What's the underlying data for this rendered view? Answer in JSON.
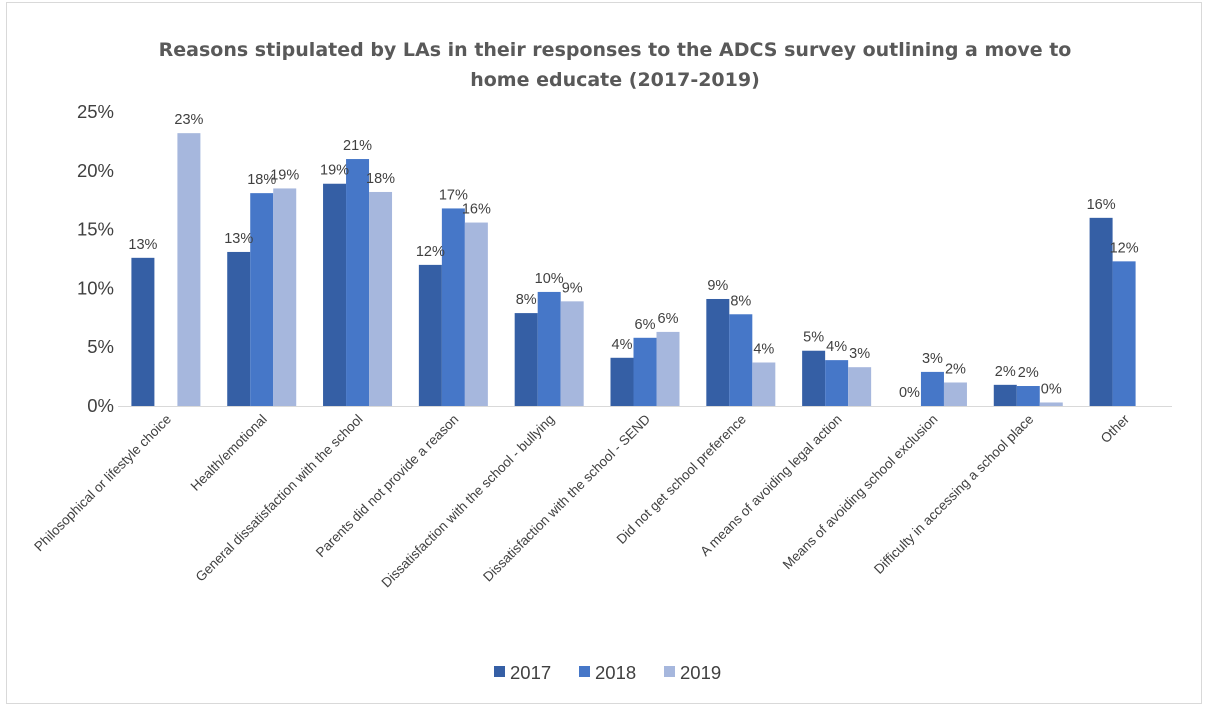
{
  "chart_data": {
    "type": "bar",
    "title": [
      "Reasons stipulated by LAs in their responses to the ADCS survey outlining a move to",
      "home educate (2017-2019)"
    ],
    "categories": [
      "Philosophical or lifestyle choice",
      "Health/emotional",
      "General dissatisfaction with the school",
      "Parents did not provide a reason",
      "Dissatisfaction with the school - bullying",
      "Dissatisfaction with the school - SEND",
      "Did not get school preference",
      "A means of avoiding legal action",
      "Means of avoiding school exclusion",
      "Difficulty in accessing a school place",
      "Other"
    ],
    "series": [
      {
        "name": "2017",
        "color": "#355fa5",
        "values": [
          12.6,
          13.1,
          18.9,
          12.0,
          7.9,
          4.1,
          9.1,
          4.7,
          0,
          1.8,
          16.0
        ],
        "labels": [
          "13%",
          "13%",
          "19%",
          "12%",
          "8%",
          "4%",
          "9%",
          "5%",
          "0%",
          "2%",
          "16%"
        ]
      },
      {
        "name": "2018",
        "color": "#4677c8",
        "values": [
          null,
          18.1,
          21.0,
          16.8,
          9.7,
          5.8,
          7.8,
          3.9,
          2.9,
          1.7,
          12.3
        ],
        "labels": [
          null,
          "18%",
          "21%",
          "17%",
          "10%",
          "6%",
          "8%",
          "4%",
          "3%",
          "2%",
          "12%"
        ]
      },
      {
        "name": "2019",
        "color": "#a6b7dd",
        "values": [
          23.2,
          18.5,
          18.2,
          15.6,
          8.9,
          6.3,
          3.7,
          3.3,
          2.0,
          0.3,
          null
        ],
        "labels": [
          "23%",
          "19%",
          "18%",
          "16%",
          "9%",
          "6%",
          "4%",
          "3%",
          "2%",
          "0%",
          null
        ]
      }
    ],
    "yticks": [
      "0%",
      "5%",
      "10%",
      "15%",
      "20%",
      "25%"
    ],
    "ylim": [
      0,
      25
    ],
    "xlabel": "",
    "ylabel": "",
    "legend_position": "bottom",
    "grid": false
  }
}
